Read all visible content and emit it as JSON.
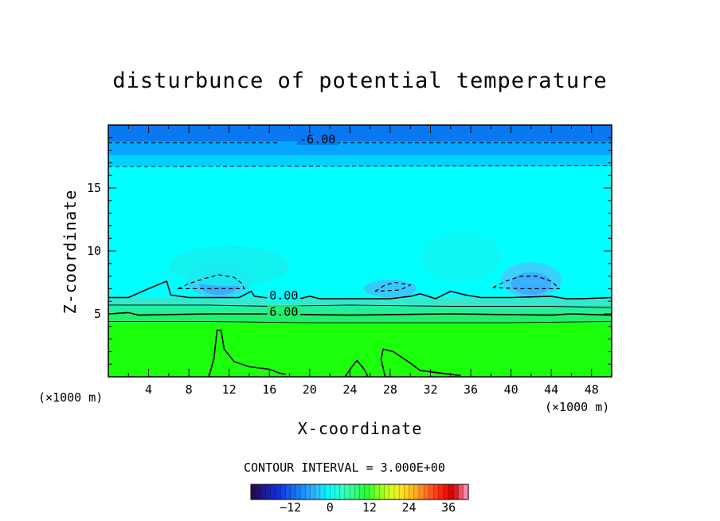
{
  "chart_data": {
    "type": "heatmap",
    "title": "disturbunce of potential temperature",
    "xlabel": "X-coordinate",
    "ylabel": "Z-coordinate",
    "x_unit_label": "(×1000 m)",
    "xlim": [
      0,
      50
    ],
    "ylim": [
      0,
      20
    ],
    "x_ticks": [
      4,
      8,
      12,
      16,
      20,
      24,
      28,
      32,
      36,
      40,
      44,
      48
    ],
    "y_ticks": [
      5,
      10,
      15
    ],
    "contour_interval_text": "CONTOUR INTERVAL = 3.000E+00",
    "contour_labels": [
      {
        "text": "-6.00",
        "x": 19,
        "z": 18.6
      },
      {
        "text": "0.00",
        "x": 16,
        "z": 6.2
      },
      {
        "text": "6.00",
        "x": 16,
        "z": 4.9
      }
    ],
    "colorbar": {
      "ticks": [
        -12,
        0,
        12,
        24,
        36
      ],
      "range": [
        -24,
        42
      ],
      "colors": [
        "#2a0a55",
        "#1f1c9a",
        "#1030e0",
        "#1660f0",
        "#1e90ff",
        "#33b8ff",
        "#00ffff",
        "#33ffcc",
        "#33ff88",
        "#22ff33",
        "#88ff22",
        "#ddff22",
        "#ffdd22",
        "#ffaa22",
        "#ff6622",
        "#ff2211",
        "#cc0000",
        "#ff88aa"
      ]
    },
    "field_bands": [
      {
        "z0": 0,
        "z1": 4.3,
        "value": 9,
        "color": "#1bff0b"
      },
      {
        "z0": 4.3,
        "z1": 5.1,
        "value": 6,
        "color": "#22f06a"
      },
      {
        "z0": 5.1,
        "z1": 5.7,
        "value": 4,
        "color": "#22eea0"
      },
      {
        "z0": 5.7,
        "z1": 6.3,
        "value": 1,
        "color": "#33e8cc"
      },
      {
        "z0": 6.3,
        "z1": 16.7,
        "value": -1,
        "color": "#00ffff"
      },
      {
        "z0": 16.7,
        "z1": 17.6,
        "value": -4,
        "color": "#00d2ff"
      },
      {
        "z0": 17.6,
        "z1": 18.7,
        "value": -6,
        "color": "#06a6ff"
      },
      {
        "z0": 18.7,
        "z1": 20,
        "value": -8,
        "color": "#0a78f0"
      }
    ],
    "grid": false
  }
}
